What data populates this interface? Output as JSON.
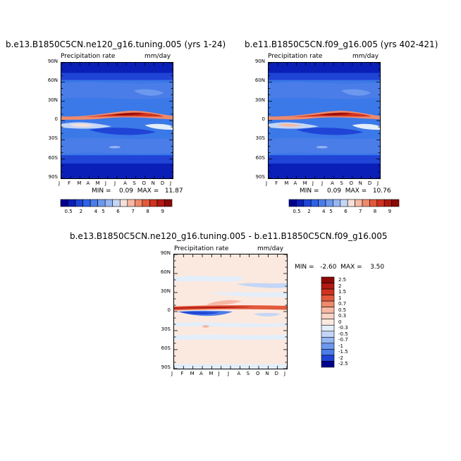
{
  "chart_data": [
    {
      "type": "heatmap",
      "title": "b.e13.B1850C5CN.ne120_g16.tuning.005 (yrs 1-24)",
      "left_label": "Precipitation rate",
      "right_label": "mm/day",
      "x_ticks": [
        "J",
        "F",
        "M",
        "A",
        "M",
        "J",
        "J",
        "A",
        "S",
        "O",
        "N",
        "D",
        "J"
      ],
      "y_ticks": [
        "90N",
        "60N",
        "30N",
        "0",
        "30S",
        "60S",
        "90S"
      ],
      "stats_text": "MIN =    0.09  MAX =   11.87",
      "min": 0.09,
      "max": 11.87
    },
    {
      "type": "heatmap",
      "title": "b.e11.B1850C5CN.f09_g16.005 (yrs 402-421)",
      "left_label": "Precipitation rate",
      "right_label": "mm/day",
      "x_ticks": [
        "J",
        "F",
        "M",
        "A",
        "M",
        "J",
        "J",
        "A",
        "S",
        "O",
        "N",
        "D",
        "J"
      ],
      "y_ticks": [
        "90N",
        "60N",
        "30N",
        "0",
        "30S",
        "60S",
        "90S"
      ],
      "stats_text": "MIN =    0.09  MAX =   10.76",
      "min": 0.09,
      "max": 10.76
    },
    {
      "type": "heatmap",
      "title": "b.e13.B1850C5CN.ne120_g16.tuning.005 - b.e11.B1850C5CN.f09_g16.005",
      "left_label": "Precipitation rate",
      "right_label": "mm/day",
      "x_ticks": [
        "J",
        "F",
        "M",
        "A",
        "M",
        "J",
        "J",
        "A",
        "S",
        "O",
        "N",
        "D",
        "J"
      ],
      "y_ticks": [
        "90N",
        "60N",
        "30N",
        "0",
        "30S",
        "60S",
        "90S"
      ],
      "stats_text": "MIN =   -2.60  MAX =    3.50",
      "min": -2.6,
      "max": 3.5
    }
  ],
  "colorbar_precip": {
    "labels": [
      "0.5",
      "2",
      "4",
      "5",
      "6",
      "7",
      "8",
      "9"
    ],
    "colors": [
      "#00008f",
      "#0a1fb8",
      "#1f44d6",
      "#2f62e8",
      "#4b7de8",
      "#6c99ee",
      "#96b6f2",
      "#c4d6f7",
      "#f7e0d7",
      "#f6b9a4",
      "#ee8a6c",
      "#e25a3c",
      "#cf3320",
      "#b01a12",
      "#8c0a05"
    ]
  },
  "colorbar_diff": {
    "labels": [
      "2.5",
      "2",
      "1.5",
      "1",
      "0.7",
      "0.5",
      "0.3",
      "0",
      "-0.3",
      "-0.5",
      "-0.7",
      "-1",
      "-1.5",
      "-2",
      "-2.5"
    ],
    "colors": [
      "#8c0a05",
      "#b01a12",
      "#cf3320",
      "#e25a3c",
      "#ee8a6c",
      "#f6b9a4",
      "#f7d4c6",
      "#fbe9e0",
      "#e3eefb",
      "#c4d6f7",
      "#96b6f2",
      "#6c99ee",
      "#4b7de8",
      "#1f44d6",
      "#00008f"
    ]
  }
}
